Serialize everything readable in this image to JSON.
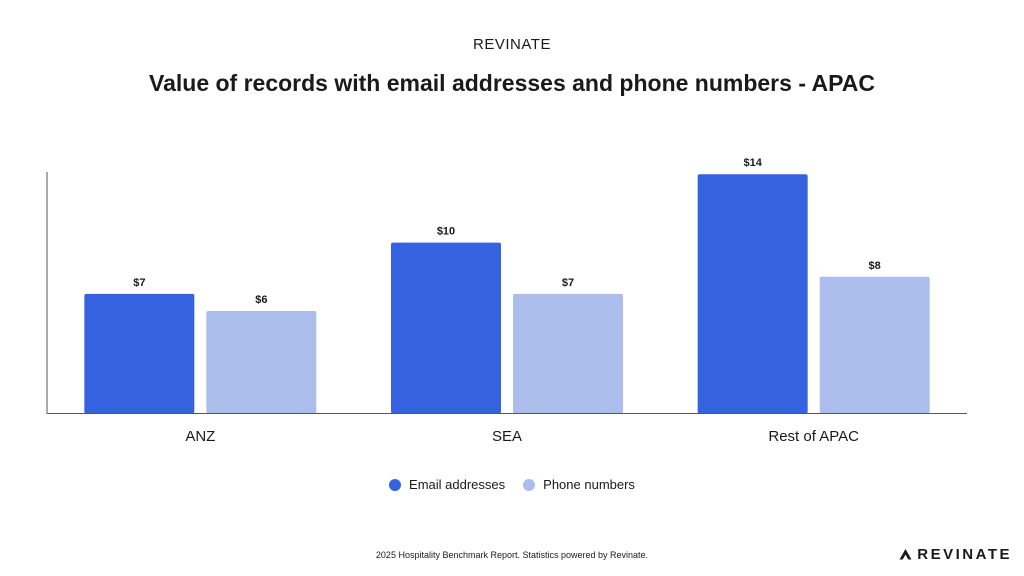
{
  "header": {
    "brand": "REVINATE",
    "title": "Value of records with email addresses and phone numbers - APAC"
  },
  "chart_data": {
    "type": "bar",
    "categories": [
      "ANZ",
      "SEA",
      "Rest of APAC"
    ],
    "series": [
      {
        "name": "Email addresses",
        "values": [
          7,
          10,
          14
        ],
        "labels": [
          "$7",
          "$10",
          "$14"
        ],
        "color": "#3563e0"
      },
      {
        "name": "Phone numbers",
        "values": [
          6,
          7,
          8
        ],
        "labels": [
          "$6",
          "$7",
          "$8"
        ],
        "color": "#abbdea"
      }
    ],
    "ylim": [
      0,
      16
    ],
    "grid": false,
    "legend_position": "bottom",
    "title": "Value of records with email addresses and phone numbers - APAC",
    "xlabel": "",
    "ylabel": ""
  },
  "footer": {
    "note": "2025 Hospitality Benchmark Report. Statistics powered by Revinate.",
    "logo_text": "REVINATE",
    "logo_icon": "revinate-chevron-icon"
  }
}
